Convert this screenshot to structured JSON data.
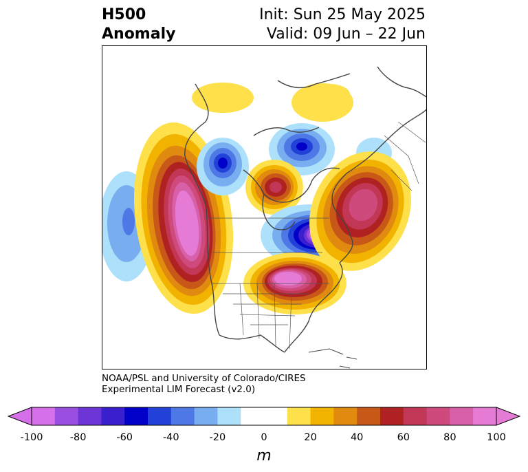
{
  "header": {
    "title_line1": "H500",
    "title_line2": "Anomaly",
    "init_text": "Init: Sun 25 May 2025",
    "valid_text": "Valid: 09 Jun – 22 Jun"
  },
  "credit": {
    "line1": "NOAA/PSL and University of Colorado/CIRES",
    "line2": "Experimental LIM Forecast (v2.0)"
  },
  "colorbar": {
    "units": "m",
    "ticks": [
      "-100",
      "-80",
      "-60",
      "-40",
      "-20",
      "0",
      "20",
      "40",
      "60",
      "80",
      "100"
    ],
    "colors": [
      "#d670ea",
      "#9b4fe0",
      "#6d35d8",
      "#3a1fcf",
      "#0000c8",
      "#2241d8",
      "#4e78e6",
      "#78aef0",
      "#ade0fb",
      "#ffffff",
      "#ffffff",
      "#fde04a",
      "#f2b300",
      "#e08a10",
      "#c85818",
      "#b02222",
      "#c23656",
      "#cf4a7c",
      "#d860a8",
      "#e67bd6"
    ],
    "min_arrow_color": "#d670ea",
    "max_arrow_color": "#e67bd6"
  }
}
